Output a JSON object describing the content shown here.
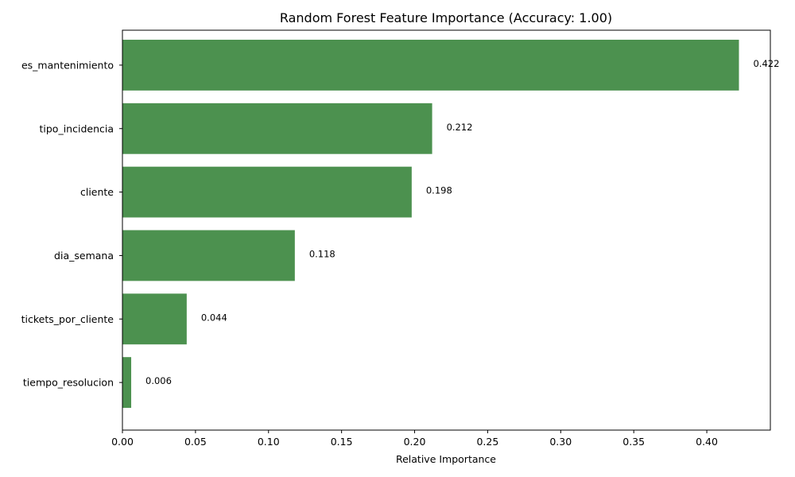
{
  "chart_data": {
    "type": "bar",
    "orientation": "horizontal",
    "title": "Random Forest Feature Importance (Accuracy: 1.00)",
    "xlabel": "Relative Importance",
    "ylabel": "",
    "categories": [
      "es_mantenimiento",
      "tipo_incidencia",
      "cliente",
      "dia_semana",
      "tickets_por_cliente",
      "tiempo_resolucion"
    ],
    "values": [
      0.422,
      0.212,
      0.198,
      0.118,
      0.044,
      0.006
    ],
    "data_labels": [
      "0.422",
      "0.212",
      "0.198",
      "0.118",
      "0.044",
      "0.006"
    ],
    "xlim": [
      0,
      0.4435
    ],
    "xticks": [
      0.0,
      0.05,
      0.1,
      0.15,
      0.2,
      0.25,
      0.3,
      0.35,
      0.4
    ],
    "xtick_labels": [
      "0.00",
      "0.05",
      "0.10",
      "0.15",
      "0.20",
      "0.25",
      "0.30",
      "0.35",
      "0.40"
    ],
    "bar_color": "#4c914f",
    "grid": false,
    "legend": "none"
  }
}
